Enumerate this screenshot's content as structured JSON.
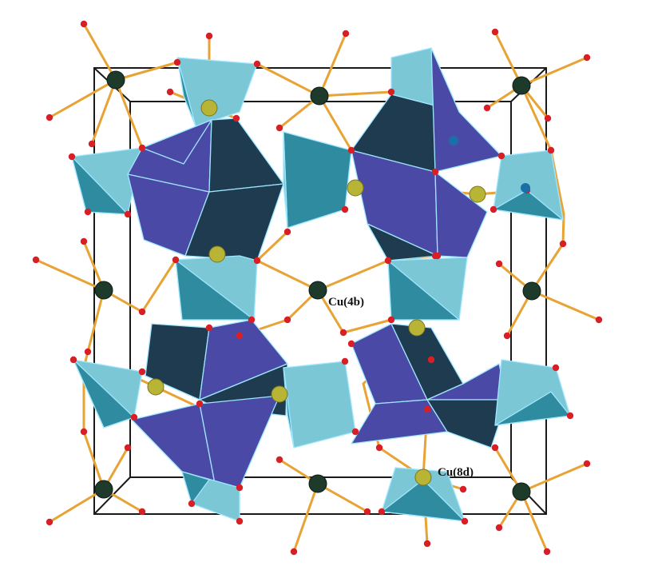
{
  "labels": {
    "cu_4b": "Cu(4b)",
    "cu_8d": "Cu(8d)"
  },
  "colors": {
    "background": "#ffffff",
    "cell_edge": "#1a1a1a",
    "bond": "#e8a335",
    "oxygen_atom": "#d91f26",
    "cu_4b_atom": "#1d3a2a",
    "cu_8d_atom": "#b8b436",
    "polyhedron_light": "#7cc7d6",
    "polyhedron_mid": "#2f8ca0",
    "polyhedron_dark": "#1f3b4f",
    "polyhedron_violet": "#4a4aa6",
    "polyhedron_edge": "#9fe6ff"
  }
}
